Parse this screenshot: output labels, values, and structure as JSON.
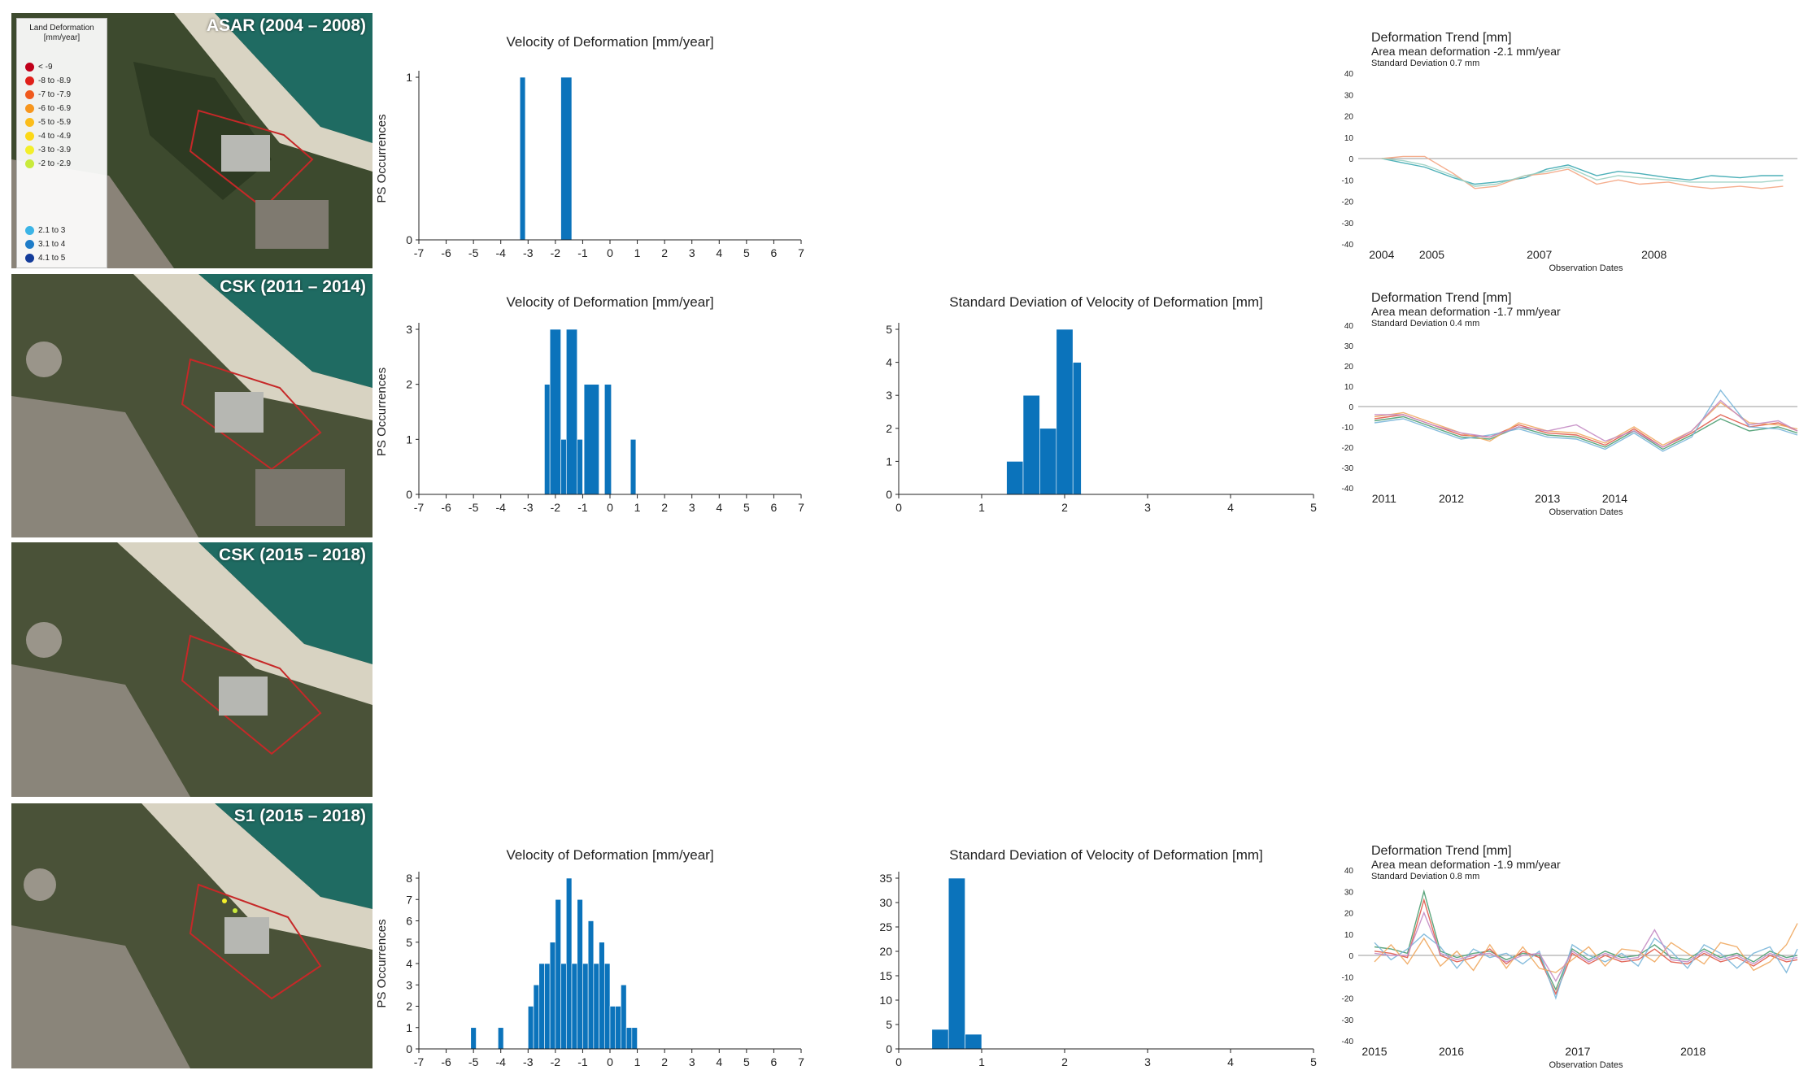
{
  "legend": {
    "title_line1": "Land Deformation",
    "title_line2": "[mm/year]",
    "items": [
      {
        "label": "< -9",
        "color": "#c0001a"
      },
      {
        "label": "-8 to -8.9",
        "color": "#e0201a"
      },
      {
        "label": "-7 to -7.9",
        "color": "#f05a1e"
      },
      {
        "label": "-6 to -6.9",
        "color": "#f7961e"
      },
      {
        "label": "-5 to -5.9",
        "color": "#fbbd1a"
      },
      {
        "label": "-4 to -4.9",
        "color": "#fcd817"
      },
      {
        "label": "-3 to -3.9",
        "color": "#f3ef2a"
      },
      {
        "label": "-2 to -2.9",
        "color": "#c9ea3c"
      },
      {
        "label": "2.1 to 3",
        "color": "#3cb4e6"
      },
      {
        "label": "3.1 to 4",
        "color": "#1e7cc8"
      },
      {
        "label": "4.1 to 5",
        "color": "#143c9a"
      }
    ]
  },
  "maps": [
    {
      "title": "ASAR (2004 – 2008)"
    },
    {
      "title": "CSK (2011 – 2014)"
    },
    {
      "title": "CSK (2015 – 2018)"
    },
    {
      "title": "S1 (2015 – 2018)"
    }
  ],
  "colors": {
    "bar": "#0b73bb",
    "axis": "#222222"
  },
  "chart_data": [
    {
      "id": "asar-velocity",
      "type": "bar",
      "title": "Velocity of Deformation [mm/year]",
      "ylabel": "PS Occurrences",
      "xlim": [
        -7,
        7
      ],
      "xticks": [
        -7,
        -6,
        -5,
        -4,
        -3,
        -2,
        -1,
        0,
        1,
        2,
        3,
        4,
        5,
        6,
        7
      ],
      "xtick_labels": [
        "-7",
        "-6",
        "-5",
        "-4",
        "-3",
        "-2",
        "-1",
        "0",
        "1",
        "2",
        "3",
        "4",
        "5",
        "6",
        "7"
      ],
      "ylim": [
        0,
        1
      ],
      "yticks": [
        0,
        1
      ],
      "ytick_labels": [
        "0",
        "1"
      ],
      "bins": [
        {
          "x0": -3.3,
          "x1": -3.1,
          "value": 1
        },
        {
          "x0": -1.8,
          "x1": -1.4,
          "value": 1
        }
      ]
    },
    {
      "id": "csk1114-velocity",
      "type": "bar",
      "title": "Velocity of Deformation [mm/year]",
      "ylabel": "PS Occurrences",
      "xlim": [
        -7,
        7
      ],
      "xticks": [
        -7,
        -6,
        -5,
        -4,
        -3,
        -2,
        -1,
        0,
        1,
        2,
        3,
        4,
        5,
        6,
        7
      ],
      "xtick_labels": [
        "-7",
        "-6",
        "-5",
        "-4",
        "-3",
        "-2",
        "-1",
        "0",
        "1",
        "2",
        "3",
        "4",
        "5",
        "6",
        "7"
      ],
      "ylim": [
        0,
        3
      ],
      "yticks": [
        0,
        1,
        2,
        3
      ],
      "ytick_labels": [
        "0",
        "1",
        "2",
        "3"
      ],
      "bins": [
        {
          "x0": -2.4,
          "x1": -2.2,
          "value": 2
        },
        {
          "x0": -2.2,
          "x1": -1.8,
          "value": 3
        },
        {
          "x0": -1.8,
          "x1": -1.6,
          "value": 1
        },
        {
          "x0": -1.6,
          "x1": -1.2,
          "value": 3
        },
        {
          "x0": -1.2,
          "x1": -1.0,
          "value": 1
        },
        {
          "x0": -0.95,
          "x1": -0.4,
          "value": 2
        },
        {
          "x0": -0.2,
          "x1": 0.05,
          "value": 2
        },
        {
          "x0": 0.75,
          "x1": 0.95,
          "value": 1
        }
      ]
    },
    {
      "id": "csk1114-stddev",
      "type": "bar",
      "title": "Standard Deviation of Velocity of Deformation [mm]",
      "ylabel": "",
      "xlim": [
        0,
        5
      ],
      "xticks": [
        0,
        1,
        2,
        3,
        4,
        5
      ],
      "xtick_labels": [
        "0",
        "1",
        "2",
        "3",
        "4",
        "5"
      ],
      "ylim": [
        0,
        5
      ],
      "yticks": [
        0,
        1,
        2,
        3,
        4,
        5
      ],
      "ytick_labels": [
        "0",
        "1",
        "2",
        "3",
        "4",
        "5"
      ],
      "bins": [
        {
          "x0": 1.3,
          "x1": 1.5,
          "value": 1
        },
        {
          "x0": 1.5,
          "x1": 1.7,
          "value": 3
        },
        {
          "x0": 1.7,
          "x1": 1.9,
          "value": 2
        },
        {
          "x0": 1.9,
          "x1": 2.1,
          "value": 5
        },
        {
          "x0": 2.1,
          "x1": 2.2,
          "value": 4
        }
      ]
    },
    {
      "id": "s1-velocity",
      "type": "bar",
      "title": "Velocity of Deformation [mm/year]",
      "ylabel": "PS Occurrences",
      "xlim": [
        -7,
        7
      ],
      "xticks": [
        -7,
        -6,
        -5,
        -4,
        -3,
        -2,
        -1,
        0,
        1,
        2,
        3,
        4,
        5,
        6,
        7
      ],
      "xtick_labels": [
        "-7",
        "-6",
        "-5",
        "-4",
        "-3",
        "-2",
        "-1",
        "0",
        "1",
        "2",
        "3",
        "4",
        "5",
        "6",
        "7"
      ],
      "ylim": [
        0,
        8
      ],
      "yticks": [
        0,
        1,
        2,
        3,
        4,
        5,
        6,
        7,
        8
      ],
      "ytick_labels": [
        "0",
        "1",
        "2",
        "3",
        "4",
        "5",
        "6",
        "7",
        "8"
      ],
      "bins": [
        {
          "x0": -5.1,
          "x1": -4.9,
          "value": 1
        },
        {
          "x0": -4.1,
          "x1": -3.9,
          "value": 1
        },
        {
          "x0": -3.0,
          "x1": -2.8,
          "value": 2
        },
        {
          "x0": -2.8,
          "x1": -2.6,
          "value": 3
        },
        {
          "x0": -2.6,
          "x1": -2.4,
          "value": 4
        },
        {
          "x0": -2.4,
          "x1": -2.2,
          "value": 4
        },
        {
          "x0": -2.2,
          "x1": -2.0,
          "value": 5
        },
        {
          "x0": -2.0,
          "x1": -1.8,
          "value": 7
        },
        {
          "x0": -1.8,
          "x1": -1.6,
          "value": 4
        },
        {
          "x0": -1.6,
          "x1": -1.4,
          "value": 8
        },
        {
          "x0": -1.4,
          "x1": -1.2,
          "value": 4
        },
        {
          "x0": -1.2,
          "x1": -1.0,
          "value": 7
        },
        {
          "x0": -1.0,
          "x1": -0.8,
          "value": 4
        },
        {
          "x0": -0.8,
          "x1": -0.6,
          "value": 6
        },
        {
          "x0": -0.6,
          "x1": -0.4,
          "value": 4
        },
        {
          "x0": -0.4,
          "x1": -0.2,
          "value": 5
        },
        {
          "x0": -0.2,
          "x1": 0.0,
          "value": 4
        },
        {
          "x0": 0.0,
          "x1": 0.2,
          "value": 2
        },
        {
          "x0": 0.2,
          "x1": 0.4,
          "value": 2
        },
        {
          "x0": 0.4,
          "x1": 0.6,
          "value": 3
        },
        {
          "x0": 0.6,
          "x1": 0.8,
          "value": 1
        },
        {
          "x0": 0.8,
          "x1": 1.0,
          "value": 1
        }
      ]
    },
    {
      "id": "s1-stddev",
      "type": "bar",
      "title": "Standard Deviation of Velocity of Deformation [mm]",
      "ylabel": "",
      "xlim": [
        0,
        5
      ],
      "xticks": [
        0,
        1,
        2,
        3,
        4,
        5
      ],
      "xtick_labels": [
        "0",
        "1",
        "2",
        "3",
        "4",
        "5"
      ],
      "ylim": [
        0,
        35
      ],
      "yticks": [
        0,
        5,
        10,
        15,
        20,
        25,
        30,
        35
      ],
      "ytick_labels": [
        "0",
        "5",
        "10",
        "15",
        "20",
        "25",
        "30",
        "35"
      ],
      "bins": [
        {
          "x0": 0.4,
          "x1": 0.6,
          "value": 4
        },
        {
          "x0": 0.6,
          "x1": 0.8,
          "value": 35
        },
        {
          "x0": 0.8,
          "x1": 1.0,
          "value": 3
        }
      ]
    },
    {
      "id": "asar-trend",
      "type": "line",
      "title": "Deformation Trend [mm]",
      "subtitle": "Area mean deformation -2.1 mm/year",
      "sd_text": "Standard Deviation 0.7 mm",
      "xlabel": "Observation Dates",
      "xlim": [
        2003.9,
        2009.8
      ],
      "date_ticks": [
        {
          "x": 2004.0,
          "label": "2004"
        },
        {
          "x": 2004.7,
          "label": "2005"
        },
        {
          "x": 2006.2,
          "label": "2007"
        },
        {
          "x": 2007.8,
          "label": "2008"
        }
      ],
      "ylim": [
        -40,
        40
      ],
      "yticks": [
        -40,
        -30,
        -20,
        -10,
        0,
        10,
        20,
        30,
        40
      ],
      "ytick_labels": [
        "-40",
        "-30",
        "-20",
        "-10",
        "0",
        "10",
        "20",
        "30",
        "40"
      ],
      "x": [
        2004.0,
        2004.3,
        2004.6,
        2005.0,
        2005.3,
        2005.6,
        2006.0,
        2006.3,
        2006.6,
        2007.0,
        2007.3,
        2007.6,
        2008.0,
        2008.3,
        2008.6,
        2009.0,
        2009.3,
        2009.6
      ],
      "series": [
        {
          "name": "ps-1",
          "color": "#3aa7b0",
          "values": [
            0,
            -2,
            -4,
            -9,
            -12,
            -11,
            -9,
            -5,
            -3,
            -8,
            -6,
            -7,
            -9,
            -10,
            -8,
            -9,
            -8,
            -8
          ]
        },
        {
          "name": "ps-2",
          "color": "#f4a582",
          "values": [
            0,
            1,
            1,
            -7,
            -14,
            -13,
            -8,
            -7,
            -5,
            -12,
            -10,
            -12,
            -11,
            -13,
            -14,
            -13,
            -14,
            -13
          ]
        },
        {
          "name": "ps-3",
          "color": "#9ad0c2",
          "values": [
            0,
            -1,
            -3,
            -8,
            -13,
            -12,
            -8,
            -6,
            -4,
            -10,
            -8,
            -9,
            -10,
            -11,
            -11,
            -11,
            -11,
            -10
          ]
        }
      ]
    },
    {
      "id": "csk1114-trend",
      "type": "line",
      "title": "Deformation Trend [mm]",
      "subtitle": "Area mean deformation -1.7 mm/year",
      "sd_text": "Standard Deviation 0.4 mm",
      "xlabel": "Observation Dates",
      "xlim": [
        2010.9,
        2015.3
      ],
      "date_ticks": [
        {
          "x": 2011.0,
          "label": "2011"
        },
        {
          "x": 2011.7,
          "label": "2012"
        },
        {
          "x": 2012.7,
          "label": "2013"
        },
        {
          "x": 2013.4,
          "label": "2014"
        }
      ],
      "ylim": [
        -40,
        40
      ],
      "yticks": [
        -40,
        -30,
        -20,
        -10,
        0,
        10,
        20,
        30,
        40
      ],
      "ytick_labels": [
        "-40",
        "-30",
        "-20",
        "-10",
        "0",
        "10",
        "20",
        "30",
        "40"
      ],
      "x": [
        2010.9,
        2011.2,
        2011.5,
        2011.8,
        2012.1,
        2012.4,
        2012.7,
        2013.0,
        2013.3,
        2013.6,
        2013.9,
        2014.2,
        2014.5,
        2014.8,
        2015.1,
        2015.3
      ],
      "series": [
        {
          "name": "ps-1",
          "color": "#e05a4a",
          "values": [
            -6,
            -4,
            -9,
            -14,
            -15,
            -9,
            -13,
            -14,
            -19,
            -11,
            -20,
            -13,
            -4,
            -10,
            -8,
            -12
          ]
        },
        {
          "name": "ps-2",
          "color": "#4a9c70",
          "values": [
            -7,
            -5,
            -10,
            -15,
            -16,
            -10,
            -14,
            -15,
            -20,
            -12,
            -21,
            -14,
            -6,
            -12,
            -10,
            -13
          ]
        },
        {
          "name": "ps-3",
          "color": "#f0a860",
          "values": [
            -5,
            -3,
            -8,
            -13,
            -17,
            -8,
            -12,
            -13,
            -18,
            -10,
            -19,
            -12,
            2,
            -8,
            -9,
            -11
          ]
        },
        {
          "name": "ps-4",
          "color": "#7ab6d9",
          "values": [
            -8,
            -6,
            -11,
            -16,
            -14,
            -11,
            -15,
            -16,
            -21,
            -13,
            -22,
            -15,
            8,
            -10,
            -11,
            -14
          ]
        },
        {
          "name": "ps-5",
          "color": "#c48cc4",
          "values": [
            -4,
            -4,
            -9,
            -13,
            -15,
            -10,
            -12,
            -9,
            -17,
            -12,
            -20,
            -12,
            3,
            -9,
            -7,
            -12
          ]
        }
      ]
    },
    {
      "id": "s1-trend",
      "type": "line",
      "title": "Deformation Trend [mm]",
      "subtitle": "Area mean deformation -1.9 mm/year",
      "sd_text": "Standard Deviation 0.8 mm",
      "xlabel": "Observation Dates",
      "xlim": [
        2015.0,
        2018.85
      ],
      "date_ticks": [
        {
          "x": 2015.0,
          "label": "2015"
        },
        {
          "x": 2015.7,
          "label": "2016"
        },
        {
          "x": 2016.85,
          "label": "2017"
        },
        {
          "x": 2017.9,
          "label": "2018"
        }
      ],
      "ylim": [
        -40,
        40
      ],
      "yticks": [
        -40,
        -30,
        -20,
        -10,
        0,
        10,
        20,
        30,
        40
      ],
      "ytick_labels": [
        "-40",
        "-30",
        "-20",
        "-10",
        "0",
        "10",
        "20",
        "30",
        "40"
      ],
      "x": [
        2015.0,
        2015.15,
        2015.3,
        2015.45,
        2015.6,
        2015.75,
        2015.9,
        2016.05,
        2016.2,
        2016.35,
        2016.5,
        2016.65,
        2016.8,
        2016.95,
        2017.1,
        2017.25,
        2017.4,
        2017.55,
        2017.7,
        2017.85,
        2018.0,
        2018.15,
        2018.3,
        2018.45,
        2018.6,
        2018.75,
        2018.85
      ],
      "series": [
        {
          "name": "ps-1",
          "color": "#4a9c70",
          "values": [
            4,
            3,
            1,
            30,
            2,
            -1,
            1,
            2,
            -2,
            1,
            0,
            -16,
            3,
            -2,
            2,
            -1,
            0,
            5,
            -1,
            -2,
            3,
            -1,
            1,
            -3,
            2,
            -1,
            0
          ]
        },
        {
          "name": "ps-2",
          "color": "#e05a4a",
          "values": [
            2,
            1,
            -1,
            26,
            0,
            -3,
            -1,
            3,
            -4,
            2,
            -1,
            -18,
            1,
            -4,
            0,
            -3,
            -2,
            3,
            -3,
            -4,
            1,
            -3,
            -1,
            -5,
            0,
            -3,
            -2
          ]
        },
        {
          "name": "ps-3",
          "color": "#7ab6d9",
          "values": [
            6,
            -2,
            3,
            10,
            4,
            -6,
            3,
            -1,
            1,
            -4,
            2,
            -20,
            5,
            0,
            -3,
            1,
            -5,
            8,
            2,
            -6,
            5,
            1,
            -6,
            1,
            4,
            -8,
            3
          ]
        },
        {
          "name": "ps-4",
          "color": "#f0a860",
          "values": [
            -3,
            5,
            -4,
            8,
            -5,
            2,
            -7,
            5,
            -6,
            4,
            -6,
            -8,
            -2,
            4,
            -5,
            3,
            2,
            -3,
            6,
            1,
            -4,
            6,
            4,
            -7,
            -3,
            5,
            15
          ]
        },
        {
          "name": "ps-5",
          "color": "#c48cc4",
          "values": [
            1,
            0,
            0,
            20,
            1,
            -2,
            0,
            1,
            -3,
            0,
            1,
            -12,
            2,
            -3,
            1,
            -2,
            -1,
            12,
            -2,
            -3,
            2,
            -2,
            0,
            -4,
            1,
            -2,
            -1
          ]
        }
      ]
    }
  ]
}
